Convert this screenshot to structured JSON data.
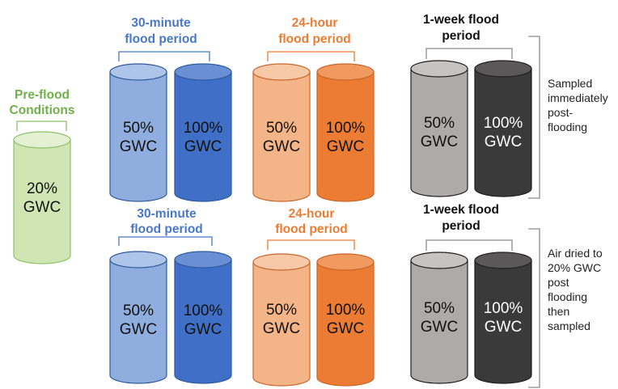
{
  "colors": {
    "green_fill": "#cfe6b4",
    "green_stroke": "#8ec06a",
    "green_text": "#6fb04a",
    "blue_light": "#8fadde",
    "blue_dark": "#3f6fc6",
    "blue_stroke": "#2f5a9a",
    "blue_text": "#4a78c8",
    "orange_light": "#f3b488",
    "orange_dark": "#ec7c33",
    "orange_stroke": "#c7662a",
    "orange_text": "#ec7c33",
    "gray_light": "#aeaaaa",
    "gray_dark": "#3b3a3a",
    "gray_stroke": "#1f1f1f",
    "bracket": "#8a8a8a"
  },
  "preflood": {
    "label_line1": "Pre-flood",
    "label_line2": "Conditions",
    "cylinder_pct": "20%",
    "cylinder_unit": "GWC"
  },
  "rows": [
    {
      "groups": [
        {
          "label_line1": "30-minute",
          "label_line2": "flood period",
          "cylinders": [
            {
              "pct": "50%",
              "unit": "GWC"
            },
            {
              "pct": "100%",
              "unit": "GWC"
            }
          ]
        },
        {
          "label_line1": "24-hour",
          "label_line2": "flood period",
          "cylinders": [
            {
              "pct": "50%",
              "unit": "GWC"
            },
            {
              "pct": "100%",
              "unit": "GWC"
            }
          ]
        },
        {
          "label_line1": "1-week flood",
          "label_line2": "period",
          "cylinders": [
            {
              "pct": "50%",
              "unit": "GWC"
            },
            {
              "pct": "100%",
              "unit": "GWC"
            }
          ]
        }
      ],
      "note_lines": [
        "Sampled",
        "immediately",
        "post-",
        "flooding"
      ]
    },
    {
      "groups": [
        {
          "label_line1": "30-minute",
          "label_line2": "flood period",
          "cylinders": [
            {
              "pct": "50%",
              "unit": "GWC"
            },
            {
              "pct": "100%",
              "unit": "GWC"
            }
          ]
        },
        {
          "label_line1": "24-hour",
          "label_line2": "flood period",
          "cylinders": [
            {
              "pct": "50%",
              "unit": "GWC"
            },
            {
              "pct": "100%",
              "unit": "GWC"
            }
          ]
        },
        {
          "label_line1": "1-week flood",
          "label_line2": "period",
          "cylinders": [
            {
              "pct": "50%",
              "unit": "GWC"
            },
            {
              "pct": "100%",
              "unit": "GWC"
            }
          ]
        }
      ],
      "note_lines": [
        "Air dried to",
        "20% GWC",
        "post",
        "flooding",
        "then",
        "sampled"
      ]
    }
  ]
}
